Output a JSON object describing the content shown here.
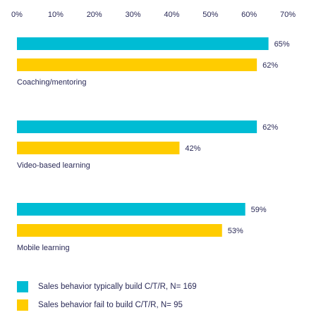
{
  "chart_data": {
    "type": "bar",
    "orientation": "horizontal",
    "xlim": [
      0,
      70
    ],
    "ticks": [
      "0%",
      "10%",
      "20%",
      "30%",
      "40%",
      "50%",
      "60%",
      "70%"
    ],
    "tick_values": [
      0,
      10,
      20,
      30,
      40,
      50,
      60,
      70
    ],
    "categories": [
      "Coaching/mentoring",
      "Video-based learning",
      "Mobile learning"
    ],
    "series": [
      {
        "name": "Sales behavior typically build C/T/R, N= 169",
        "color": "#00bcd4",
        "values": [
          65,
          62,
          59
        ],
        "labels": [
          "65%",
          "62%",
          "59%"
        ]
      },
      {
        "name": "Sales behavior fail to build C/T/R, N= 95",
        "color": "#ffcc00",
        "values": [
          62,
          42,
          53
        ],
        "labels": [
          "62%",
          "42%",
          "53%"
        ]
      }
    ],
    "grid": false,
    "legend_position": "bottom-left"
  }
}
